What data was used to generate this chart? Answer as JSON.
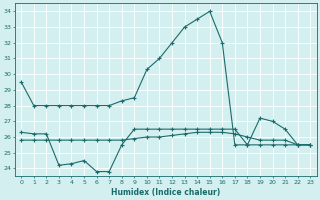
{
  "xlabel": "Humidex (Indice chaleur)",
  "background_color": "#d4efef",
  "line_color": "#1a6b6b",
  "xlim": [
    -0.5,
    23.5
  ],
  "ylim": [
    23.5,
    34.5
  ],
  "yticks": [
    24,
    25,
    26,
    27,
    28,
    29,
    30,
    31,
    32,
    33,
    34
  ],
  "xticks": [
    0,
    1,
    2,
    3,
    4,
    5,
    6,
    7,
    8,
    9,
    10,
    11,
    12,
    13,
    14,
    15,
    16,
    17,
    18,
    19,
    20,
    21,
    22,
    23
  ],
  "series1_y": [
    29.5,
    28.0,
    28.0,
    28.0,
    28.0,
    28.0,
    28.0,
    28.0,
    28.3,
    28.5,
    30.3,
    31.0,
    32.0,
    33.0,
    33.5,
    34.0,
    32.0,
    25.5,
    25.5,
    27.2,
    27.0,
    26.5,
    25.5,
    25.5
  ],
  "series2_y": [
    26.3,
    26.2,
    26.2,
    24.2,
    24.3,
    24.5,
    23.8,
    23.8,
    25.5,
    26.5,
    26.5,
    26.5,
    26.5,
    26.5,
    26.5,
    26.5,
    26.5,
    26.5,
    25.5,
    25.5,
    25.5,
    25.5,
    25.5,
    25.5
  ],
  "series3_y": [
    25.8,
    25.8,
    25.8,
    25.8,
    25.8,
    25.8,
    25.8,
    25.8,
    25.8,
    25.9,
    26.0,
    26.0,
    26.1,
    26.2,
    26.3,
    26.3,
    26.3,
    26.2,
    26.0,
    25.8,
    25.8,
    25.8,
    25.5,
    25.5
  ]
}
